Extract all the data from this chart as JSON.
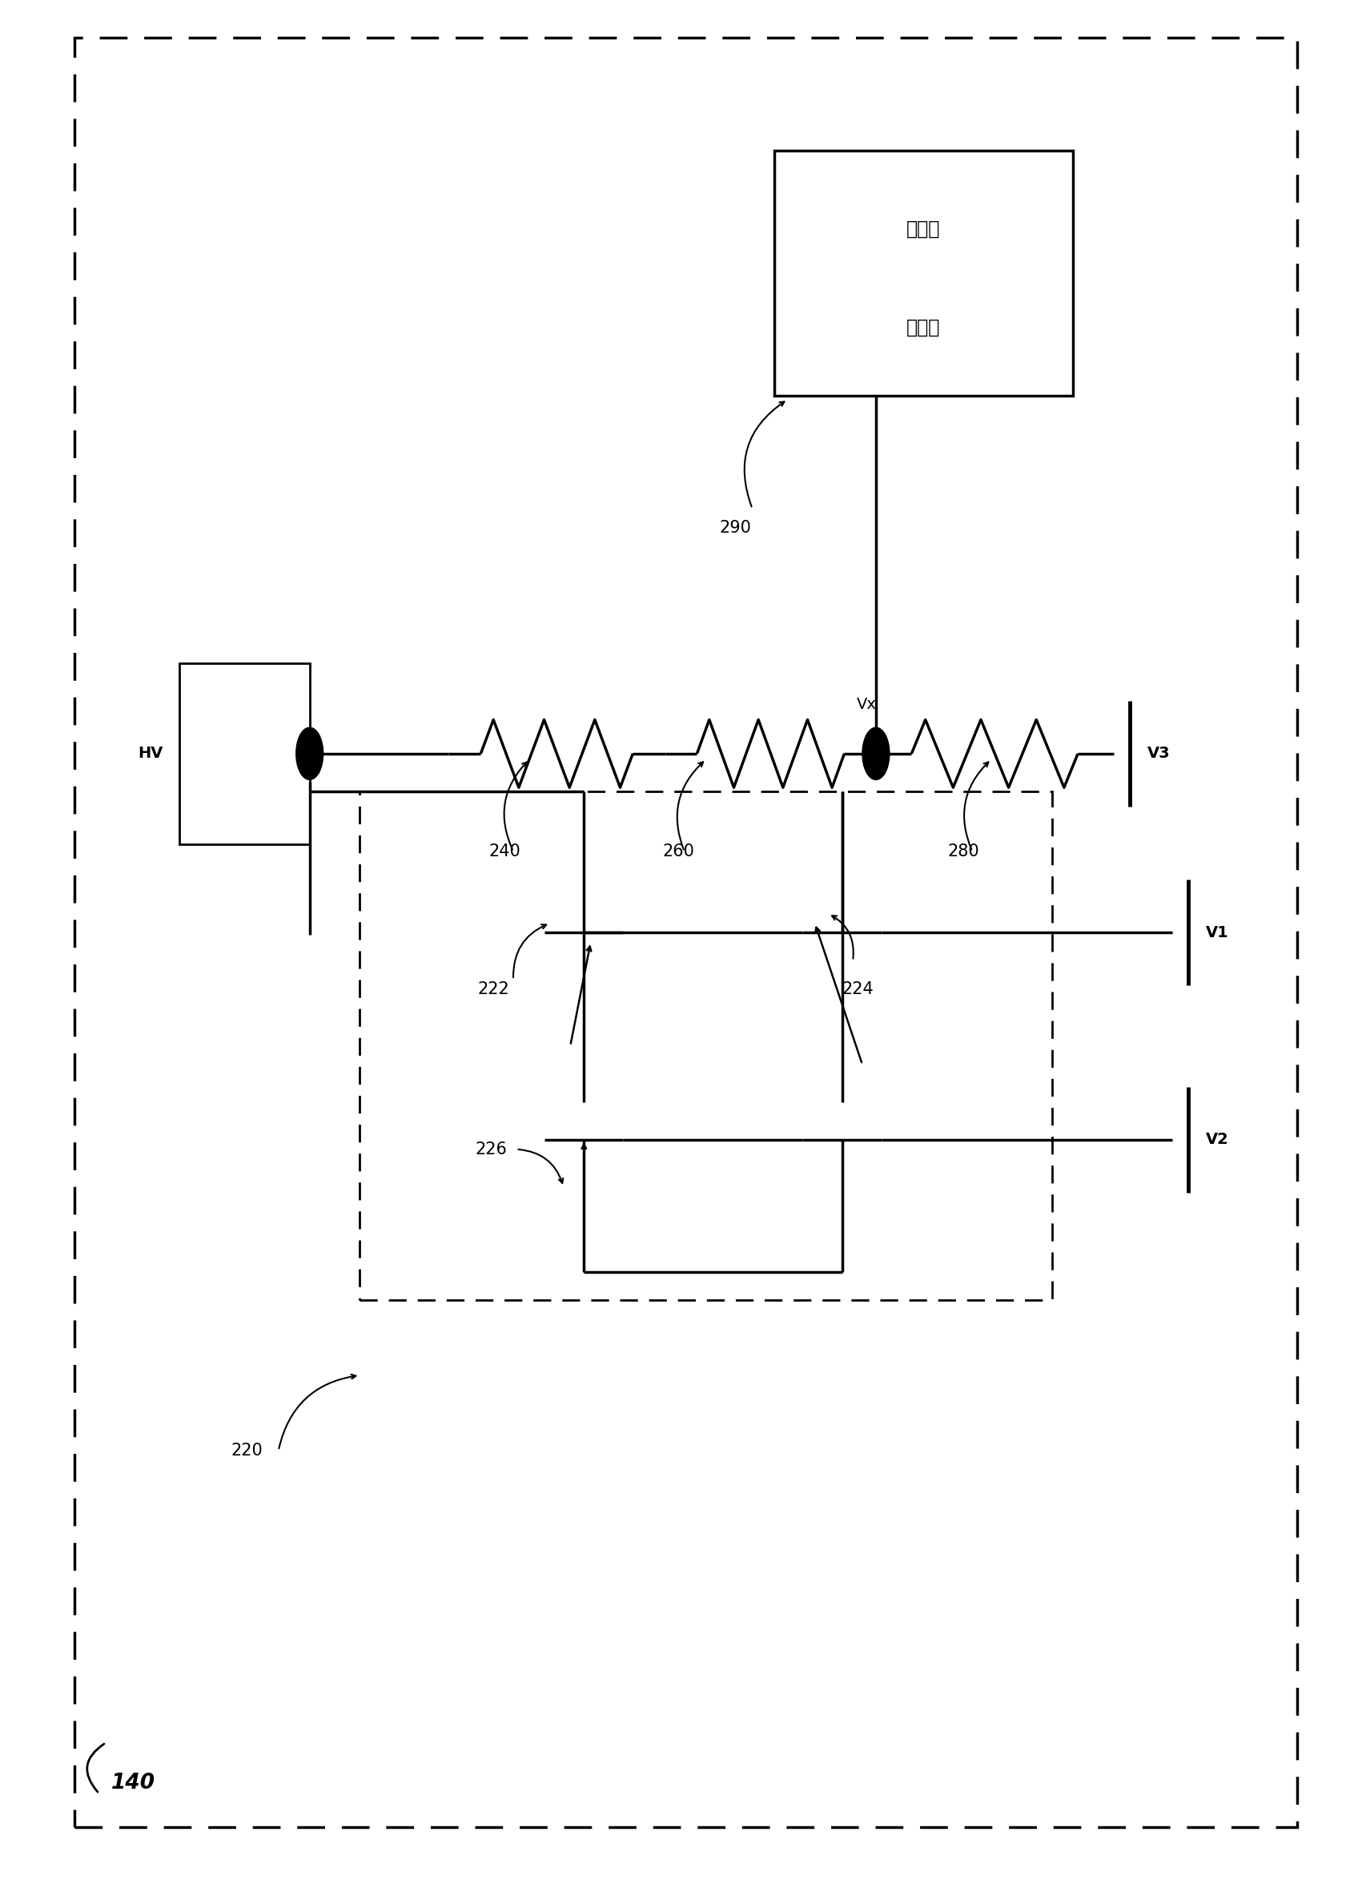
{
  "bg": "#ffffff",
  "lw": 2.5,
  "outer_dash": [
    10,
    6
  ],
  "inner_dash": [
    8,
    5
  ],
  "box290_line1": "电压侵",
  "box290_line2": "测电路",
  "label_hv": "HV",
  "label_v1": "V1",
  "label_v2": "V2",
  "label_v3": "V3",
  "label_vx": "Vx",
  "label_140": "140",
  "label_220": "220",
  "label_222": "222",
  "label_224": "224",
  "label_226": "226",
  "label_240": "240",
  "label_260": "260",
  "label_280": "280",
  "label_290": "290",
  "resistor_amp": 0.018,
  "resistor_n": 6
}
